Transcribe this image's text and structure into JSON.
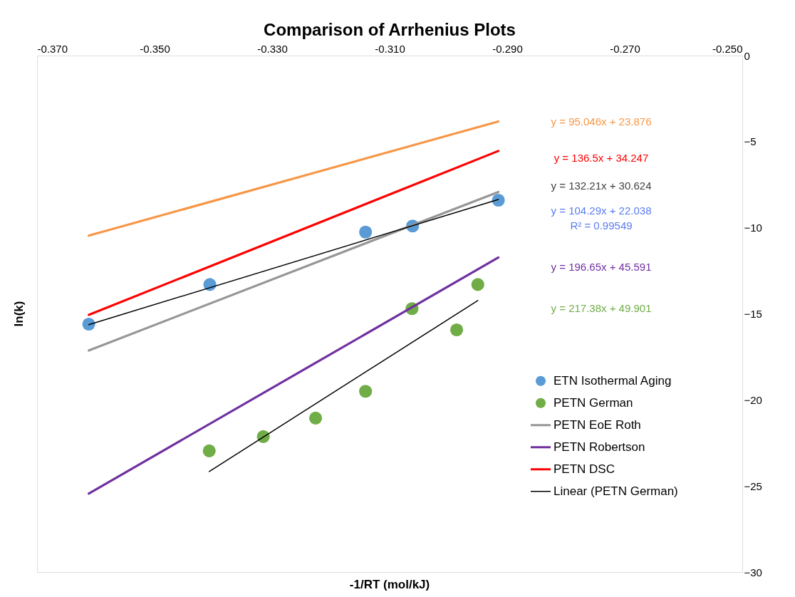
{
  "chart_data": {
    "type": "scatter",
    "title": "Comparison of Arrhenius Plots",
    "xlabel": "-1/RT (mol/kJ)",
    "ylabel": "ln(k)",
    "xlim": [
      -0.37,
      -0.25
    ],
    "xticks": [
      {
        "value": -0.37,
        "label": "-0.370"
      },
      {
        "value": -0.35,
        "label": "-0.350"
      },
      {
        "value": -0.33,
        "label": "-0.330"
      },
      {
        "value": -0.31,
        "label": "-0.310"
      },
      {
        "value": -0.29,
        "label": "-0.290"
      },
      {
        "value": -0.27,
        "label": "-0.270"
      },
      {
        "value": -0.25,
        "label": "-0.250"
      }
    ],
    "ylim": [
      -30,
      0
    ],
    "yticks": [
      0,
      -5,
      -10,
      -15,
      -20,
      -25,
      -30
    ],
    "grid": false,
    "legend": "bottom right",
    "series": [
      {
        "name": "ETN Isothermal Aging",
        "color": "#5b9bd5",
        "x": [
          -0.3612,
          -0.3406,
          -0.3141,
          -0.3061,
          -0.2915
        ],
        "values": [
          -15.6,
          -13.3,
          -10.25,
          -9.9,
          -8.4
        ]
      },
      {
        "name": "PETN German",
        "color": "#70ad47",
        "x": [
          -0.3407,
          -0.3315,
          -0.3226,
          -0.3141,
          -0.3062,
          -0.2986,
          -0.295
        ],
        "values": [
          -22.96,
          -22.13,
          -21.06,
          -19.5,
          -14.7,
          -15.93,
          -13.3
        ]
      },
      {
        "name": "PETN EoE Roth",
        "type": "line",
        "color": "#969696",
        "x": [
          -0.3612,
          -0.2915
        ],
        "values": [
          -17.13,
          -7.92
        ]
      },
      {
        "name": "PETN Robertson",
        "type": "line",
        "color": "#7030a0",
        "x": [
          -0.3612,
          -0.2915
        ],
        "values": [
          -25.44,
          -11.73
        ]
      },
      {
        "name": "PETN DSC",
        "type": "line",
        "color": "#ff0000",
        "x": [
          -0.3612,
          -0.2915
        ],
        "values": [
          -15.06,
          -5.54
        ]
      },
      {
        "name": "Linear (PETN German)",
        "type": "line",
        "color": "#000000",
        "x": [
          -0.3407,
          -0.295
        ],
        "values": [
          -24.16,
          -14.23
        ]
      },
      {
        "type": "line",
        "color": "#f79646",
        "x": [
          -0.3612,
          -0.2915
        ],
        "values": [
          -10.46,
          -3.83
        ]
      },
      {
        "type": "line",
        "color": "#000000",
        "x": [
          -0.3612,
          -0.2915
        ],
        "values": [
          -15.63,
          -8.36
        ]
      }
    ],
    "annotations": [
      "y = 95.046x + 23.876",
      "y = 136.5x + 34.247",
      "y = 132.21x + 30.624",
      "y = 104.29x + 22.038",
      "R² = 0.99549",
      "y = 196.65x + 45.591",
      "y = 217.38x + 49.901"
    ]
  }
}
